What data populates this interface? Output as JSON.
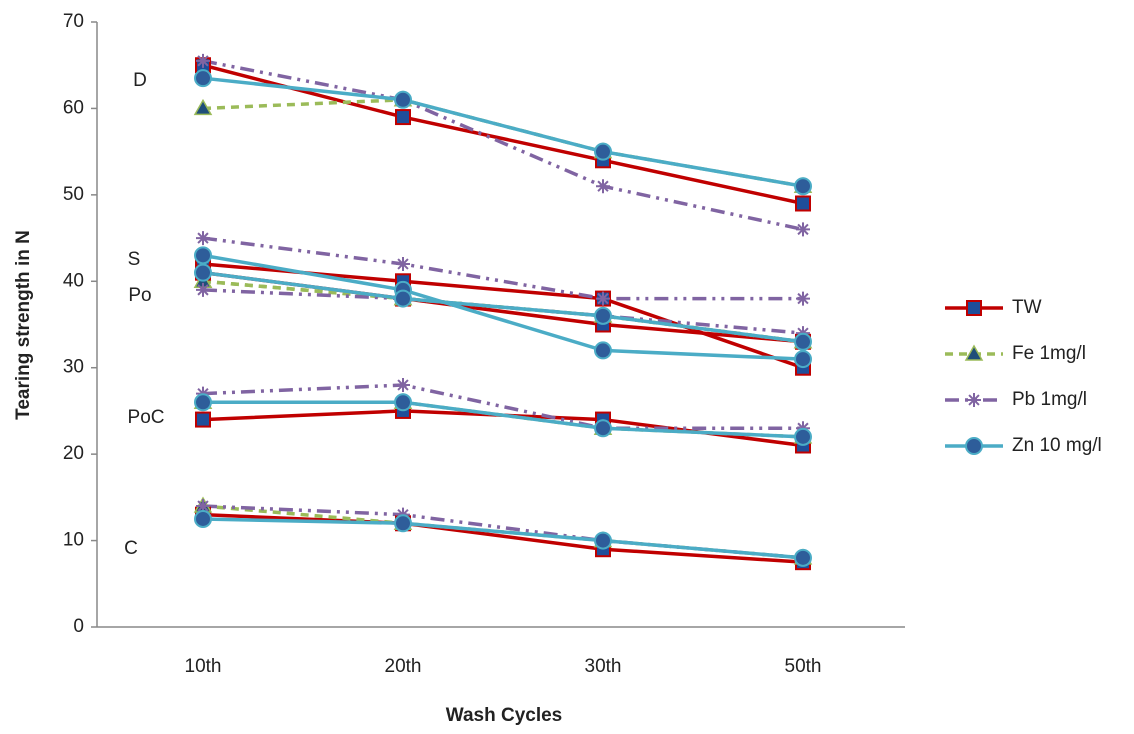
{
  "chart_data": {
    "type": "line",
    "x_label": "Wash Cycles",
    "y_label": "Tearing strength in N",
    "categories": [
      "10th",
      "20th",
      "30th",
      "50th"
    ],
    "groups": [
      "D",
      "S",
      "Po",
      "PoC",
      "C"
    ],
    "ylim": [
      0,
      70
    ],
    "yticks": [
      0,
      10,
      20,
      30,
      40,
      50,
      60,
      70
    ],
    "series": [
      {
        "name": "TW",
        "color": "#c00000",
        "marker": "square",
        "dash": "solid",
        "values": [
          [
            65,
            59,
            54,
            49
          ],
          [
            42,
            40,
            38,
            30
          ],
          [
            41,
            38,
            35,
            33
          ],
          [
            24,
            25,
            24,
            21
          ],
          [
            13,
            12,
            9,
            7.5
          ]
        ]
      },
      {
        "name": "Fe 1mg/l",
        "color": "#9bbb59",
        "marker": "triangle",
        "dash": "dash",
        "values": [
          [
            60,
            61,
            55,
            51
          ],
          [
            40,
            38,
            36,
            33
          ],
          [
            40,
            38,
            36,
            33
          ],
          [
            26,
            26,
            23,
            22
          ],
          [
            14,
            12,
            10,
            8
          ]
        ]
      },
      {
        "name": "Pb 1mg/l",
        "color": "#8064a2",
        "marker": "star",
        "dash": "dashdotdot",
        "values": [
          [
            65.5,
            61,
            51,
            46
          ],
          [
            45,
            42,
            38,
            38
          ],
          [
            39,
            38,
            36,
            34
          ],
          [
            27,
            28,
            23,
            23
          ],
          [
            14,
            13,
            10,
            8
          ]
        ]
      },
      {
        "name": "Zn 10 mg/l",
        "color": "#4bacc6",
        "marker": "circle",
        "dash": "solid",
        "values": [
          [
            63.5,
            61,
            55,
            51
          ],
          [
            43,
            39,
            32,
            31
          ],
          [
            41,
            38,
            36,
            33
          ],
          [
            26,
            26,
            23,
            22
          ],
          [
            12.5,
            12,
            10,
            8
          ]
        ]
      }
    ]
  }
}
